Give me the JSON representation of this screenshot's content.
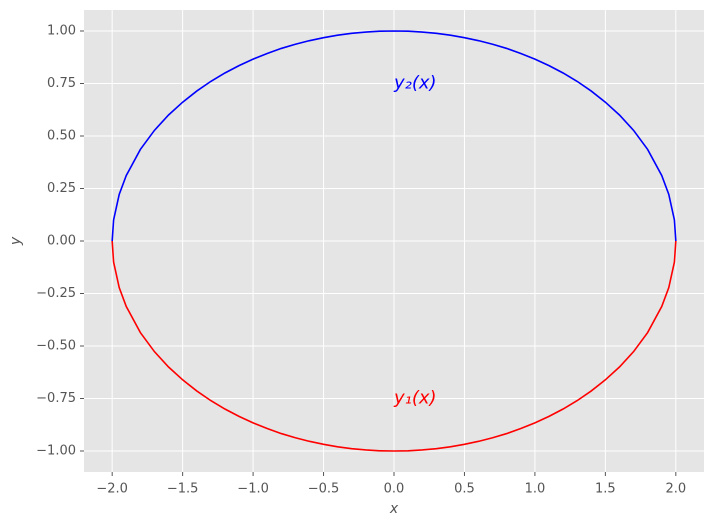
{
  "chart_data": {
    "type": "line",
    "x_label": "x",
    "y_label": "y",
    "x": [
      -2,
      -1.99,
      -1.95,
      -1.9,
      -1.8,
      -1.7,
      -1.6,
      -1.5,
      -1.4,
      -1.3,
      -1.2,
      -1.1,
      -1.0,
      -0.9,
      -0.8,
      -0.7,
      -0.6,
      -0.5,
      -0.4,
      -0.3,
      -0.2,
      -0.1,
      0,
      0.1,
      0.2,
      0.3,
      0.4,
      0.5,
      0.6,
      0.7,
      0.8,
      0.9,
      1.0,
      1.1,
      1.2,
      1.3,
      1.4,
      1.5,
      1.6,
      1.7,
      1.8,
      1.9,
      1.95,
      1.99,
      2
    ],
    "series": [
      {
        "color": "#ff0000",
        "values": [
          0,
          -0.1,
          -0.222,
          -0.312,
          -0.436,
          -0.527,
          -0.6,
          -0.661,
          -0.714,
          -0.76,
          -0.8,
          -0.835,
          -0.866,
          -0.893,
          -0.917,
          -0.937,
          -0.954,
          -0.968,
          -0.98,
          -0.989,
          -0.995,
          -0.999,
          -1,
          -0.999,
          -0.995,
          -0.989,
          -0.98,
          -0.968,
          -0.954,
          -0.937,
          -0.917,
          -0.893,
          -0.866,
          -0.835,
          -0.8,
          -0.76,
          -0.714,
          -0.661,
          -0.6,
          -0.527,
          -0.436,
          -0.312,
          -0.222,
          -0.1,
          0
        ]
      },
      {
        "color": "#0000ff",
        "values": [
          0,
          0.1,
          0.222,
          0.312,
          0.436,
          0.527,
          0.6,
          0.661,
          0.714,
          0.76,
          0.8,
          0.835,
          0.866,
          0.893,
          0.917,
          0.937,
          0.954,
          0.968,
          0.98,
          0.989,
          0.995,
          0.999,
          1,
          0.999,
          0.995,
          0.989,
          0.98,
          0.968,
          0.954,
          0.937,
          0.917,
          0.893,
          0.866,
          0.835,
          0.8,
          0.76,
          0.714,
          0.661,
          0.6,
          0.527,
          0.436,
          0.312,
          0.222,
          0.1,
          0
        ]
      }
    ],
    "annotations": [
      {
        "text": "y₂(x)",
        "x": 0,
        "y": 0.75,
        "color": "#0000ff"
      },
      {
        "text": "y₁(x)",
        "x": 0,
        "y": -0.75,
        "color": "#ff0000"
      }
    ],
    "xlim": [
      -2.2,
      2.2
    ],
    "ylim": [
      -1.1,
      1.1
    ],
    "xticks": [
      {
        "value": -2,
        "label": "−2.0"
      },
      {
        "value": -1.5,
        "label": "−1.5"
      },
      {
        "value": -1,
        "label": "−1.0"
      },
      {
        "value": -0.5,
        "label": "−0.5"
      },
      {
        "value": 0,
        "label": "0.0"
      },
      {
        "value": 0.5,
        "label": "0.5"
      },
      {
        "value": 1,
        "label": "1.0"
      },
      {
        "value": 1.5,
        "label": "1.5"
      },
      {
        "value": 2,
        "label": "2.0"
      }
    ],
    "yticks": [
      {
        "value": -1,
        "label": "−1.00"
      },
      {
        "value": -0.75,
        "label": "−0.75"
      },
      {
        "value": -0.5,
        "label": "−0.50"
      },
      {
        "value": -0.25,
        "label": "−0.25"
      },
      {
        "value": 0,
        "label": "0.00"
      },
      {
        "value": 0.25,
        "label": "0.25"
      },
      {
        "value": 0.5,
        "label": "0.50"
      },
      {
        "value": 0.75,
        "label": "0.75"
      },
      {
        "value": 1,
        "label": "1.00"
      }
    ],
    "grid": true,
    "background": "#e5e5e5"
  }
}
